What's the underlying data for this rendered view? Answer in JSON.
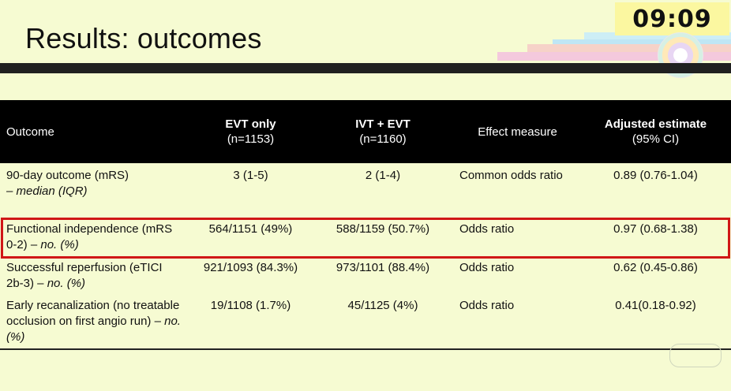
{
  "slide": {
    "title": "Results: outcomes",
    "timer": "09:09"
  },
  "table": {
    "headers": [
      {
        "label": "Outcome",
        "sub": ""
      },
      {
        "label": "EVT only",
        "sub": "(n=1153)"
      },
      {
        "label": "IVT + EVT",
        "sub": "(n=1160)"
      },
      {
        "label": "Effect measure",
        "sub": ""
      },
      {
        "label": "Adjusted estimate",
        "sub": "(95% CI)"
      }
    ],
    "rows": [
      {
        "outcome": "90-day outcome (mRS)",
        "qualifier": "– median (IQR)",
        "evt_only": "3 (1-5)",
        "ivt_evt": "2 (1-4)",
        "measure": "Common odds ratio",
        "estimate": "0.89 (0.76-1.04)",
        "highlighted": false
      },
      {
        "outcome": "Functional independence (mRS 0-2) –",
        "qualifier": "no. (%)",
        "evt_only": "564/1151 (49%)",
        "ivt_evt": "588/1159 (50.7%)",
        "measure": "Odds ratio",
        "estimate": "0.97 (0.68-1.38)",
        "highlighted": true
      },
      {
        "outcome": "Successful reperfusion (eTICI 2b-3) –",
        "qualifier": "no. (%)",
        "evt_only": "921/1093 (84.3%)",
        "ivt_evt": "973/1101 (88.4%)",
        "measure": "Odds ratio",
        "estimate": "0.62 (0.45-0.86)",
        "highlighted": false
      },
      {
        "outcome": "Early recanalization (no treatable occlusion on first angio run) –",
        "qualifier": "no. (%)",
        "evt_only": "19/1108 (1.7%)",
        "ivt_evt": "45/1125 (4%)",
        "measure": "Odds ratio",
        "estimate": "0.41(0.18-0.92)",
        "highlighted": false
      }
    ]
  },
  "colors": {
    "background": "#f6fbd2",
    "header_bg": "#000000",
    "highlight_border": "#d01616",
    "timer_bg": "#fbf7a0"
  }
}
